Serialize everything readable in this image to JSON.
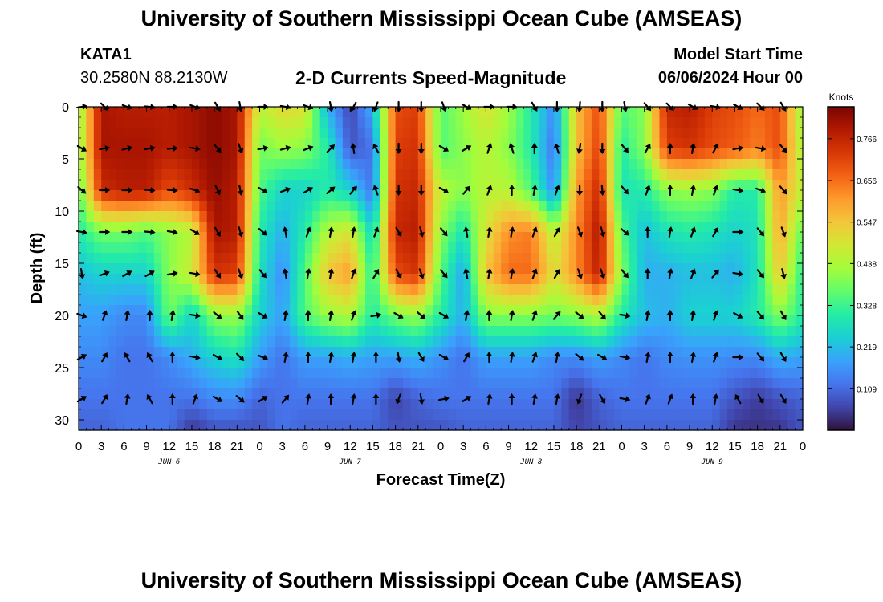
{
  "header": {
    "title": "University of Southern Mississippi Ocean Cube (AMSEAS)",
    "station_id": "KATA1",
    "coords": "30.2580N  88.2130W",
    "plot_title": "2-D Currents Speed-Magnitude",
    "model_start_label": "Model Start Time",
    "model_start_value": "06/06/2024 Hour 00"
  },
  "footer": {
    "title": "University of Southern Mississippi Ocean Cube (AMSEAS)"
  },
  "colors": {
    "stops": [
      "#30123b",
      "#4145ab",
      "#4675ed",
      "#39a2fc",
      "#1bcfd4",
      "#24eca6",
      "#61fc6c",
      "#a4fc3b",
      "#d1e834",
      "#f3c63a",
      "#fe9b2d",
      "#f36315",
      "#d93806",
      "#b11901",
      "#7a0403"
    ]
  },
  "chart_data": {
    "type": "heatmap",
    "title": "2-D Currents Speed-Magnitude",
    "xlabel": "Forecast Time(Z)",
    "ylabel": "Depth (ft)",
    "xlim": [
      0,
      96
    ],
    "ylim": [
      0,
      31
    ],
    "x_ticks": [
      0,
      3,
      6,
      9,
      12,
      15,
      18,
      21,
      24,
      27,
      30,
      33,
      36,
      39,
      42,
      45,
      48,
      51,
      54,
      57,
      60,
      63,
      66,
      69,
      72,
      75,
      78,
      81,
      84,
      87,
      90,
      93,
      96
    ],
    "x_tick_labels": [
      "0",
      "3",
      "6",
      "9",
      "12",
      "15",
      "18",
      "21",
      "0",
      "3",
      "6",
      "9",
      "12",
      "15",
      "18",
      "21",
      "0",
      "3",
      "6",
      "9",
      "12",
      "15",
      "18",
      "21",
      "0",
      "3",
      "6",
      "9",
      "12",
      "15",
      "18",
      "21",
      "0"
    ],
    "day_labels": [
      {
        "text": "JUN 6",
        "hour": 12
      },
      {
        "text": "JUN 7",
        "hour": 36
      },
      {
        "text": "JUN 8",
        "hour": 60
      },
      {
        "text": "JUN 9",
        "hour": 84
      }
    ],
    "y_ticks": [
      0,
      5,
      10,
      15,
      20,
      25,
      30
    ],
    "y_tick_labels": [
      "0",
      "5",
      "10",
      "15",
      "20",
      "25",
      "30"
    ],
    "colorbar": {
      "unit": "Knots",
      "min": 0.0,
      "max": 0.85,
      "tick_values": [
        0.766,
        0.656,
        0.547,
        0.438,
        0.328,
        0.219,
        0.109
      ],
      "tick_labels": [
        "0.766",
        "0.656",
        "0.547",
        "0.438",
        "0.328",
        "0.219",
        "0.109"
      ]
    },
    "speed_grid": {
      "hours": [
        0,
        3,
        6,
        9,
        12,
        15,
        18,
        21,
        24,
        27,
        30,
        33,
        36,
        39,
        42,
        45,
        48,
        51,
        54,
        57,
        60,
        63,
        66,
        69,
        72,
        75,
        78,
        81,
        84,
        87,
        90,
        93,
        96
      ],
      "depths": [
        0,
        4,
        8,
        12,
        16,
        20,
        24,
        28,
        31
      ],
      "values": [
        [
          0.4,
          0.8,
          0.78,
          0.78,
          0.78,
          0.8,
          0.83,
          0.8,
          0.45,
          0.52,
          0.5,
          0.2,
          0.06,
          0.2,
          0.7,
          0.72,
          0.35,
          0.42,
          0.5,
          0.42,
          0.3,
          0.15,
          0.55,
          0.7,
          0.35,
          0.4,
          0.76,
          0.78,
          0.72,
          0.7,
          0.66,
          0.7,
          0.4
        ],
        [
          0.4,
          0.8,
          0.8,
          0.8,
          0.78,
          0.8,
          0.83,
          0.8,
          0.38,
          0.42,
          0.4,
          0.3,
          0.08,
          0.12,
          0.72,
          0.74,
          0.35,
          0.4,
          0.45,
          0.4,
          0.3,
          0.12,
          0.55,
          0.72,
          0.3,
          0.4,
          0.72,
          0.74,
          0.7,
          0.68,
          0.64,
          0.7,
          0.42
        ],
        [
          0.35,
          0.75,
          0.78,
          0.78,
          0.7,
          0.75,
          0.82,
          0.78,
          0.35,
          0.25,
          0.25,
          0.3,
          0.25,
          0.12,
          0.74,
          0.76,
          0.45,
          0.4,
          0.45,
          0.45,
          0.35,
          0.15,
          0.6,
          0.76,
          0.28,
          0.3,
          0.4,
          0.42,
          0.4,
          0.3,
          0.3,
          0.62,
          0.45
        ],
        [
          0.3,
          0.38,
          0.38,
          0.35,
          0.4,
          0.45,
          0.8,
          0.78,
          0.3,
          0.2,
          0.3,
          0.45,
          0.5,
          0.25,
          0.76,
          0.78,
          0.4,
          0.28,
          0.5,
          0.62,
          0.64,
          0.45,
          0.62,
          0.8,
          0.35,
          0.22,
          0.28,
          0.3,
          0.28,
          0.25,
          0.28,
          0.6,
          0.35
        ],
        [
          0.22,
          0.25,
          0.25,
          0.25,
          0.4,
          0.48,
          0.74,
          0.72,
          0.28,
          0.15,
          0.35,
          0.55,
          0.6,
          0.3,
          0.7,
          0.74,
          0.35,
          0.18,
          0.55,
          0.66,
          0.66,
          0.5,
          0.62,
          0.78,
          0.4,
          0.2,
          0.2,
          0.22,
          0.22,
          0.2,
          0.28,
          0.55,
          0.3
        ],
        [
          0.18,
          0.18,
          0.15,
          0.15,
          0.38,
          0.25,
          0.4,
          0.42,
          0.25,
          0.18,
          0.35,
          0.42,
          0.45,
          0.3,
          0.38,
          0.42,
          0.3,
          0.2,
          0.4,
          0.4,
          0.4,
          0.38,
          0.4,
          0.45,
          0.3,
          0.22,
          0.2,
          0.25,
          0.25,
          0.25,
          0.3,
          0.4,
          0.3
        ],
        [
          0.15,
          0.15,
          0.12,
          0.12,
          0.15,
          0.2,
          0.25,
          0.28,
          0.18,
          0.12,
          0.18,
          0.18,
          0.2,
          0.18,
          0.18,
          0.2,
          0.16,
          0.12,
          0.18,
          0.18,
          0.18,
          0.15,
          0.15,
          0.18,
          0.15,
          0.12,
          0.15,
          0.16,
          0.16,
          0.15,
          0.15,
          0.2,
          0.18
        ],
        [
          0.12,
          0.12,
          0.12,
          0.12,
          0.12,
          0.12,
          0.15,
          0.15,
          0.1,
          0.12,
          0.12,
          0.12,
          0.12,
          0.12,
          0.06,
          0.1,
          0.12,
          0.12,
          0.12,
          0.12,
          0.12,
          0.12,
          0.04,
          0.1,
          0.12,
          0.12,
          0.12,
          0.12,
          0.12,
          0.08,
          0.05,
          0.08,
          0.1
        ],
        [
          0.1,
          0.1,
          0.12,
          0.12,
          0.12,
          0.04,
          0.08,
          0.08,
          0.08,
          0.12,
          0.1,
          0.1,
          0.1,
          0.1,
          0.08,
          0.08,
          0.08,
          0.1,
          0.1,
          0.1,
          0.1,
          0.1,
          0.06,
          0.08,
          0.1,
          0.1,
          0.1,
          0.1,
          0.1,
          0.04,
          0.04,
          0.04,
          0.08
        ]
      ]
    },
    "vector_rows": [
      {
        "depth": 0,
        "dirs": [
          80,
          135,
          110,
          95,
          90,
          110,
          150,
          170,
          90,
          100,
          110,
          170,
          210,
          200,
          180,
          180,
          160,
          120,
          90,
          90,
          150,
          180,
          185,
          180,
          170,
          140,
          135,
          120,
          100,
          120,
          135,
          150
        ]
      },
      {
        "depth": 4,
        "dirs": [
          120,
          80,
          75,
          80,
          85,
          100,
          140,
          160,
          80,
          75,
          70,
          45,
          350,
          330,
          180,
          180,
          120,
          60,
          20,
          340,
          0,
          340,
          190,
          180,
          140,
          30,
          0,
          10,
          30,
          80,
          100,
          140
        ]
      },
      {
        "depth": 8,
        "dirs": [
          130,
          90,
          90,
          95,
          95,
          110,
          155,
          170,
          120,
          70,
          60,
          50,
          40,
          340,
          180,
          180,
          120,
          40,
          20,
          0,
          10,
          20,
          180,
          175,
          140,
          20,
          0,
          10,
          20,
          100,
          110,
          140
        ]
      },
      {
        "depth": 12,
        "dirs": [
          100,
          90,
          90,
          95,
          100,
          120,
          150,
          165,
          130,
          350,
          20,
          10,
          10,
          20,
          150,
          165,
          140,
          350,
          10,
          10,
          20,
          30,
          160,
          165,
          130,
          0,
          10,
          20,
          30,
          90,
          140,
          160
        ]
      },
      {
        "depth": 16,
        "dirs": [
          170,
          70,
          60,
          60,
          80,
          100,
          145,
          160,
          140,
          350,
          10,
          10,
          20,
          30,
          150,
          160,
          140,
          350,
          10,
          10,
          20,
          30,
          160,
          160,
          140,
          0,
          10,
          20,
          40,
          100,
          140,
          165
        ]
      },
      {
        "depth": 20,
        "dirs": [
          110,
          20,
          10,
          0,
          10,
          100,
          130,
          145,
          120,
          10,
          0,
          10,
          20,
          80,
          120,
          130,
          120,
          10,
          0,
          10,
          20,
          40,
          130,
          140,
          100,
          10,
          0,
          10,
          20,
          120,
          140,
          150
        ]
      },
      {
        "depth": 24,
        "dirs": [
          60,
          30,
          330,
          330,
          0,
          100,
          120,
          135,
          110,
          10,
          0,
          10,
          10,
          0,
          170,
          150,
          120,
          30,
          0,
          10,
          20,
          10,
          130,
          120,
          100,
          10,
          0,
          10,
          20,
          90,
          140,
          150
        ]
      },
      {
        "depth": 28,
        "dirs": [
          60,
          30,
          10,
          330,
          0,
          20,
          120,
          130,
          60,
          40,
          10,
          0,
          10,
          0,
          200,
          170,
          80,
          60,
          10,
          0,
          10,
          10,
          200,
          150,
          100,
          20,
          20,
          0,
          10,
          330,
          150,
          150
        ]
      }
    ]
  }
}
